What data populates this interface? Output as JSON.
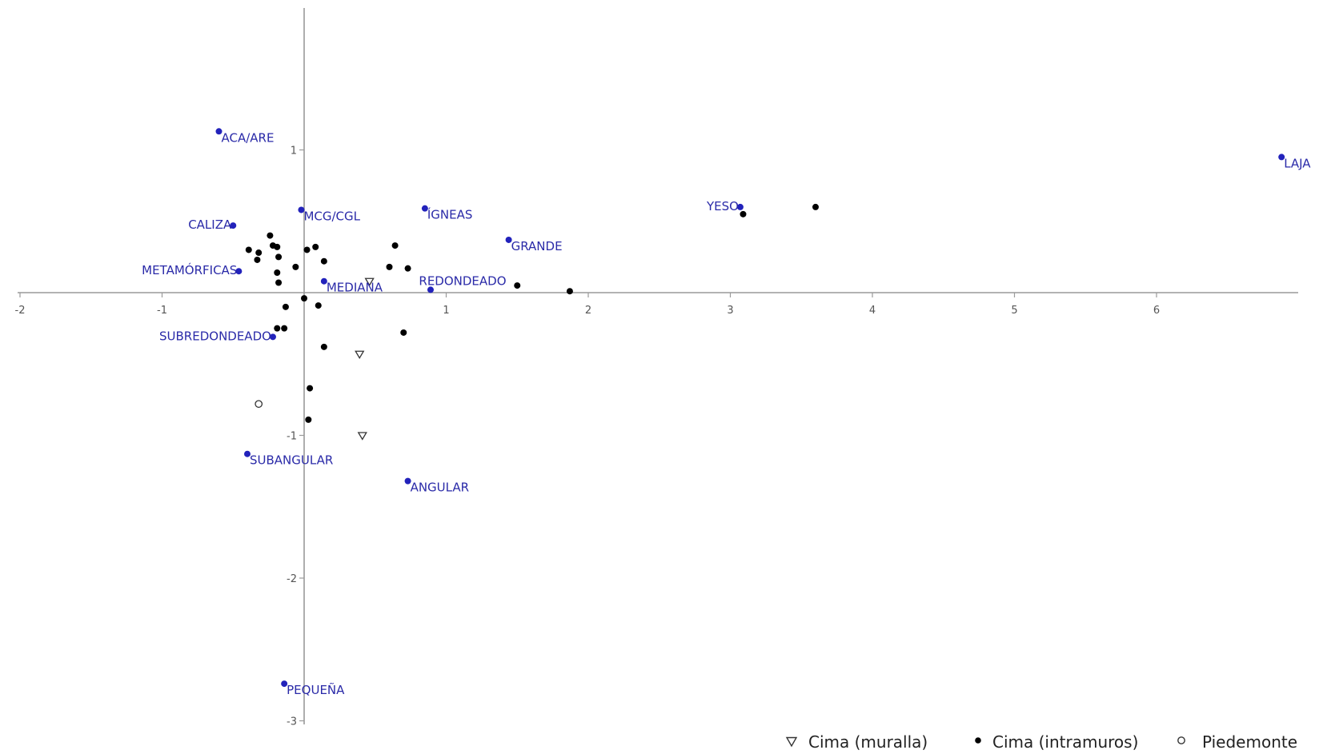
{
  "colors": {
    "axis": "#9a9a9a",
    "variable": "#2222bb",
    "variable_text": "#2a2aa8",
    "observation": "#000000"
  },
  "chart_data": {
    "type": "scatter",
    "title": "",
    "xlabel": "",
    "ylabel": "",
    "xlim": [
      -2,
      7
    ],
    "ylim": [
      -3,
      2
    ],
    "x_ticks": [
      -2,
      -1,
      1,
      2,
      3,
      4,
      5,
      6
    ],
    "y_ticks": [
      1,
      -1,
      -2,
      -3
    ],
    "grid": false,
    "legend_position": "bottom-right",
    "legend": [
      {
        "label": "Cima (muralla)",
        "marker": "triangle-down-open"
      },
      {
        "label": "Cima (intramuros)",
        "marker": "circle-filled"
      },
      {
        "label": "Piedemonte",
        "marker": "circle-open"
      }
    ],
    "variables": [
      {
        "label": "ACA/ARE",
        "x": -0.6,
        "y": 1.13
      },
      {
        "label": "LAJA",
        "x": 6.88,
        "y": 0.95
      },
      {
        "label": "YESO",
        "x": 3.07,
        "y": 0.6
      },
      {
        "label": "MCG/CGL",
        "x": -0.02,
        "y": 0.58
      },
      {
        "label": "ÍGNEAS",
        "x": 0.85,
        "y": 0.59
      },
      {
        "label": "CALIZA",
        "x": -0.5,
        "y": 0.47
      },
      {
        "label": "GRANDE",
        "x": 1.44,
        "y": 0.37
      },
      {
        "label": "METAMÓRFICAS",
        "x": -0.46,
        "y": 0.15
      },
      {
        "label": "MEDIANA",
        "x": 0.14,
        "y": 0.08
      },
      {
        "label": "REDONDEADO",
        "x": 0.89,
        "y": 0.02
      },
      {
        "label": "SUBREDONDEADO",
        "x": -0.22,
        "y": -0.31
      },
      {
        "label": "SUBANGULAR",
        "x": -0.4,
        "y": -1.13
      },
      {
        "label": "ANGULAR",
        "x": 0.73,
        "y": -1.32
      },
      {
        "label": "PEQUEÑA",
        "x": -0.14,
        "y": -2.74
      }
    ],
    "series": [
      {
        "name": "Cima (muralla)",
        "points": [
          [
            0.46,
            0.08
          ],
          [
            0.39,
            -0.43
          ],
          [
            0.41,
            -1.0
          ]
        ]
      },
      {
        "name": "Cima (intramuros)",
        "points": [
          [
            3.6,
            0.6
          ],
          [
            3.09,
            0.55
          ],
          [
            0.64,
            0.33
          ],
          [
            0.6,
            0.18
          ],
          [
            0.73,
            0.17
          ],
          [
            1.5,
            0.05
          ],
          [
            1.87,
            0.01
          ],
          [
            0.7,
            -0.28
          ],
          [
            0.02,
            0.3
          ],
          [
            0.08,
            0.32
          ],
          [
            0.14,
            0.22
          ],
          [
            -0.06,
            0.18
          ],
          [
            -0.24,
            0.4
          ],
          [
            -0.22,
            0.33
          ],
          [
            -0.19,
            0.32
          ],
          [
            -0.39,
            0.3
          ],
          [
            -0.32,
            0.28
          ],
          [
            -0.33,
            0.23
          ],
          [
            -0.18,
            0.25
          ],
          [
            -0.19,
            0.14
          ],
          [
            -0.18,
            0.07
          ],
          [
            0.0,
            -0.04
          ],
          [
            0.1,
            -0.09
          ],
          [
            -0.13,
            -0.1
          ],
          [
            -0.19,
            -0.25
          ],
          [
            -0.14,
            -0.25
          ],
          [
            0.14,
            -0.38
          ],
          [
            0.04,
            -0.67
          ],
          [
            0.03,
            -0.89
          ]
        ]
      },
      {
        "name": "Piedemonte",
        "points": [
          [
            -0.32,
            -0.78
          ]
        ]
      }
    ]
  }
}
